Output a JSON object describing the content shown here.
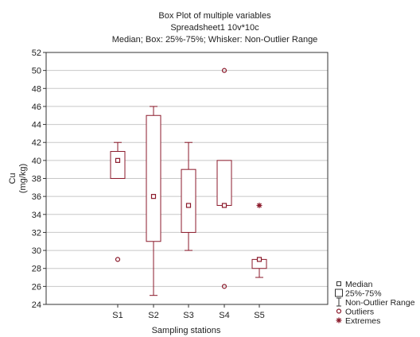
{
  "chart_data": {
    "type": "boxplot",
    "title": "Box Plot of multiple variables",
    "subtitle": "Spreadsheet1 10v*10c",
    "description": "Median; Box: 25%-75%; Whisker: Non-Outlier Range",
    "xlabel": "Sampling stations",
    "ylabel": "Cu\n(mg/kg)",
    "ylim": [
      24,
      52
    ],
    "yticks": [
      24,
      26,
      28,
      30,
      32,
      34,
      36,
      38,
      40,
      42,
      44,
      46,
      48,
      50,
      52
    ],
    "grid": true,
    "categories": [
      "S1",
      "S2",
      "S3",
      "S4",
      "S5"
    ],
    "boxes": [
      {
        "station": "S1",
        "median": 40,
        "q1": 38,
        "q3": 41,
        "whisker_low": 38,
        "whisker_high": 42,
        "outliers": [
          29
        ],
        "extremes": []
      },
      {
        "station": "S2",
        "median": 36,
        "q1": 31,
        "q3": 45,
        "whisker_low": 25,
        "whisker_high": 46,
        "outliers": [],
        "extremes": []
      },
      {
        "station": "S3",
        "median": 35,
        "q1": 32,
        "q3": 39,
        "whisker_low": 30,
        "whisker_high": 42,
        "outliers": [],
        "extremes": []
      },
      {
        "station": "S4",
        "median": 35,
        "q1": 35,
        "q3": 40,
        "whisker_low": 35,
        "whisker_high": 40,
        "outliers": [
          50,
          26
        ],
        "extremes": []
      },
      {
        "station": "S5",
        "median": 29,
        "q1": 28,
        "q3": 29,
        "whisker_low": 27,
        "whisker_high": 29,
        "outliers": [],
        "extremes": [
          35
        ]
      }
    ],
    "legend": {
      "position": "bottom-right",
      "items": [
        {
          "key": "median",
          "label": "Median"
        },
        {
          "key": "box",
          "label": "25%-75%"
        },
        {
          "key": "whisker",
          "label": "Non-Outlier Range"
        },
        {
          "key": "outlier",
          "label": "Outliers"
        },
        {
          "key": "extreme",
          "label": "Extremes"
        }
      ]
    },
    "colors": {
      "stroke": "#8b1a2b",
      "grid": "#c8c8c8",
      "axis": "#333333"
    }
  }
}
